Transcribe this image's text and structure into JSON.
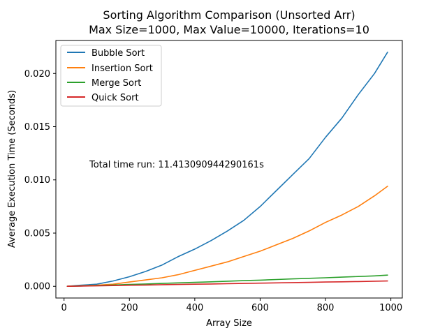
{
  "chart_data": {
    "type": "line",
    "title": "Sorting Algorithm Comparison (Unsorted Arr)",
    "subtitle": "Max Size=1000, Max Value=10000, Iterations=10",
    "xlabel": "Array Size",
    "ylabel": "Average Execution Time (Seconds)",
    "xlim": [
      -25,
      1035
    ],
    "ylim": [
      -0.0011,
      0.0231
    ],
    "xticks": [
      0,
      200,
      400,
      600,
      800,
      1000
    ],
    "xtick_labels": [
      "0",
      "200",
      "400",
      "600",
      "800",
      "1000"
    ],
    "yticks": [
      0.0,
      0.005,
      0.01,
      0.015,
      0.02
    ],
    "ytick_labels": [
      "0.000",
      "0.005",
      "0.010",
      "0.015",
      "0.020"
    ],
    "grid": false,
    "legend_position": "top-left",
    "annotation": "Total time run: 11.413090944290161s",
    "x": [
      10,
      50,
      100,
      150,
      200,
      250,
      300,
      350,
      400,
      450,
      500,
      550,
      600,
      650,
      700,
      750,
      800,
      850,
      900,
      950,
      990
    ],
    "series": [
      {
        "name": "Bubble Sort",
        "color": "#1f77b4",
        "values": [
          0.0,
          0.0001,
          0.0002,
          0.0005,
          0.0009,
          0.0014,
          0.002,
          0.0028,
          0.0035,
          0.0043,
          0.0052,
          0.0062,
          0.0075,
          0.009,
          0.0105,
          0.012,
          0.014,
          0.0158,
          0.018,
          0.02,
          0.022
        ]
      },
      {
        "name": "Insertion Sort",
        "color": "#ff7f0e",
        "values": [
          0.0,
          5e-05,
          0.0001,
          0.0002,
          0.0004,
          0.0006,
          0.0008,
          0.0011,
          0.0015,
          0.0019,
          0.0023,
          0.0028,
          0.0033,
          0.0039,
          0.0045,
          0.0052,
          0.006,
          0.0067,
          0.0075,
          0.0085,
          0.0094
        ]
      },
      {
        "name": "Merge Sort",
        "color": "#2ca02c",
        "values": [
          0.0,
          3e-05,
          7e-05,
          0.00012,
          0.00017,
          0.00022,
          0.00027,
          0.00032,
          0.00037,
          0.00042,
          0.00048,
          0.00053,
          0.00058,
          0.00064,
          0.0007,
          0.00075,
          0.0008,
          0.00086,
          0.00092,
          0.00098,
          0.00105
        ]
      },
      {
        "name": "Quick Sort",
        "color": "#d62728",
        "values": [
          0.0,
          2e-05,
          4e-05,
          7e-05,
          0.0001,
          0.00012,
          0.00015,
          0.00017,
          0.0002,
          0.00022,
          0.00025,
          0.00027,
          0.0003,
          0.00032,
          0.00035,
          0.00037,
          0.0004,
          0.00042,
          0.00045,
          0.00048,
          0.0005
        ]
      }
    ]
  }
}
